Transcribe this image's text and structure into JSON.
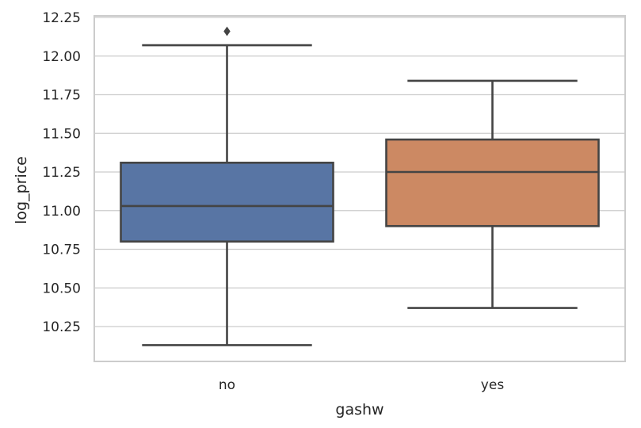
{
  "chart_data": {
    "type": "box",
    "xlabel": "gashw",
    "ylabel": "log_price",
    "ylim": [
      10.03,
      12.25
    ],
    "yticks": [
      "10.25",
      "10.50",
      "10.75",
      "11.00",
      "11.25",
      "11.50",
      "11.75",
      "12.00",
      "12.25"
    ],
    "categories": [
      "no",
      "yes"
    ],
    "boxes": [
      {
        "category": "no",
        "whisker_low": 10.13,
        "q1": 10.8,
        "median": 11.03,
        "q3": 11.31,
        "whisker_high": 12.07,
        "outliers": [
          12.16
        ],
        "color": "#5875a4"
      },
      {
        "category": "yes",
        "whisker_low": 10.37,
        "q1": 10.9,
        "median": 11.25,
        "q3": 11.46,
        "whisker_high": 11.84,
        "outliers": [],
        "color": "#cc8963"
      }
    ],
    "grid": true,
    "line_color": "#444444"
  }
}
